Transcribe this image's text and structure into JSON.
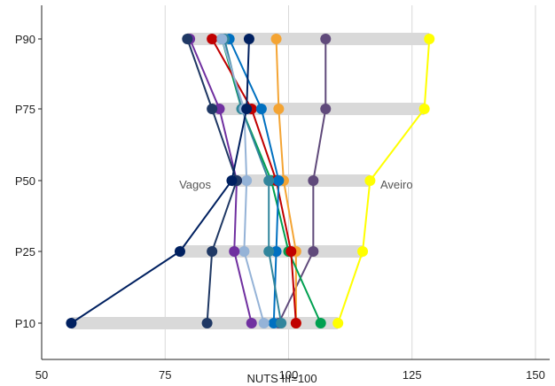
{
  "chart_data": {
    "type": "line",
    "xlabel": "NUTS III=100",
    "xlim": [
      50,
      150
    ],
    "x_ticks": [
      50,
      75,
      100,
      125,
      150
    ],
    "categories": [
      "P90",
      "P75",
      "P50",
      "P25",
      "P10"
    ],
    "grid": "vertical",
    "range_bars": [
      {
        "category": "P90",
        "min": 79.5,
        "max": 128.5
      },
      {
        "category": "P75",
        "min": 84.5,
        "max": 127.5
      },
      {
        "category": "P50",
        "min": 88.5,
        "max": 116.5
      },
      {
        "category": "P25",
        "min": 78.0,
        "max": 115.0
      },
      {
        "category": "P10",
        "min": 56.0,
        "max": 110.0
      }
    ],
    "series": [
      {
        "color": "#FFFF00",
        "values": [
          128.5,
          127.5,
          116.5,
          115.0,
          110.0
        ]
      },
      {
        "color": "#604A7B",
        "values": [
          107.5,
          107.5,
          105.0,
          105.0,
          98.0
        ]
      },
      {
        "color": "#F4A433",
        "values": [
          97.5,
          98.0,
          99.0,
          101.5,
          101.5
        ]
      },
      {
        "color": "#00A050",
        "values": [
          86.5,
          90.5,
          96.5,
          100.0,
          106.5
        ]
      },
      {
        "color": "#C00000",
        "values": [
          84.5,
          92.5,
          97.5,
          100.5,
          101.5
        ]
      },
      {
        "color": "#0070C0",
        "values": [
          88.0,
          94.5,
          98.0,
          97.5,
          97.0
        ]
      },
      {
        "color": "#31859C",
        "values": [
          87.0,
          90.5,
          96.0,
          96.0,
          98.5
        ]
      },
      {
        "color": "#95B3D7",
        "values": [
          86.5,
          91.0,
          91.5,
          91.0,
          95.0
        ]
      },
      {
        "color": "#7030A0",
        "values": [
          80.0,
          86.0,
          89.5,
          89.0,
          92.5
        ]
      },
      {
        "color": "#1F3864",
        "values": [
          79.5,
          84.5,
          89.5,
          84.5,
          83.5
        ]
      },
      {
        "color": "#002060",
        "values": [
          92.0,
          91.5,
          88.5,
          78.0,
          56.0
        ]
      }
    ],
    "annotations": [
      {
        "text": "Vagos",
        "category": "P50"
      },
      {
        "text": "Aveiro",
        "category": "P50"
      }
    ]
  }
}
